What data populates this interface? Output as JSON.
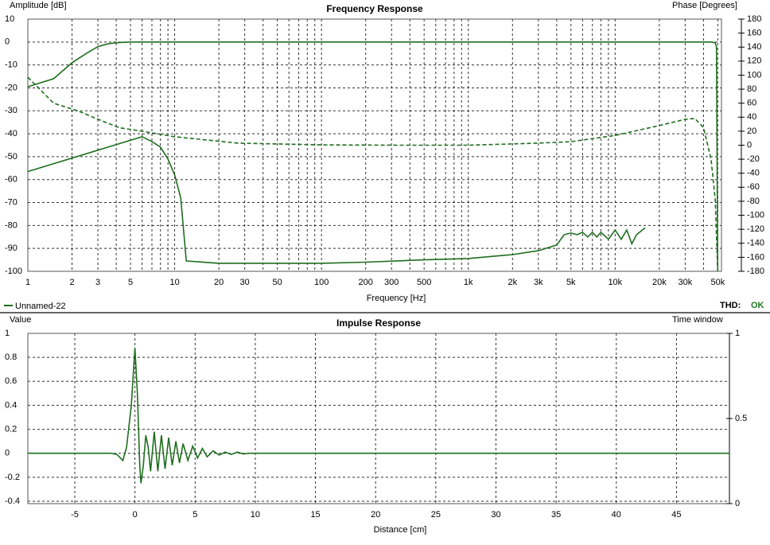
{
  "chart_data": [
    {
      "type": "line",
      "title": "Frequency Response",
      "x_label": "Frequency [Hz]",
      "y_label": "Amplitude [dB]",
      "y2_label": "Phase [Degrees]",
      "xlog": true,
      "grid": true,
      "xlim": [
        1,
        53000
      ],
      "ylim": [
        -100,
        10
      ],
      "y2lim": [
        -180,
        180
      ],
      "xticks": [
        1,
        2,
        3,
        5,
        10,
        20,
        30,
        50,
        100,
        200,
        300,
        500,
        {
          "value": 1000,
          "label": "1k"
        },
        {
          "value": 2000,
          "label": "2k"
        },
        {
          "value": 3000,
          "label": "3k"
        },
        {
          "value": 5000,
          "label": "5k"
        },
        {
          "value": 10000,
          "label": "10k"
        },
        {
          "value": 20000,
          "label": "20k"
        },
        {
          "value": 30000,
          "label": "30k"
        },
        {
          "value": 50000,
          "label": "50k"
        }
      ],
      "minor_xticks": [
        4,
        6,
        7,
        8,
        9,
        40,
        60,
        70,
        80,
        90,
        400,
        600,
        700,
        800,
        900,
        4000,
        6000,
        7000,
        8000,
        9000,
        40000
      ],
      "yticks": [
        10,
        0,
        -10,
        -20,
        -30,
        -40,
        -50,
        -60,
        -70,
        -80,
        -90,
        -100
      ],
      "y2ticks": [
        180,
        160,
        140,
        120,
        100,
        80,
        60,
        40,
        20,
        0,
        -20,
        -40,
        -60,
        -80,
        -100,
        -120,
        -140,
        -160,
        -180
      ],
      "legend": "bottom-left",
      "thd_label": "THD:",
      "thd_status": "OK",
      "thd_color": "#1e7a1e",
      "series": [
        {
          "name": "Unnamed-22",
          "color": "#1e6e1e",
          "x": [
            1,
            1.5,
            2,
            2.5,
            3,
            3.5,
            4,
            5,
            10,
            100,
            1000,
            10000,
            45000,
            48000,
            49000,
            50000
          ],
          "values": [
            -19.5,
            -16,
            -9,
            -5,
            -2,
            -0.8,
            -0.3,
            0,
            0,
            0,
            0,
            0,
            0,
            -0.3,
            -2,
            -100
          ]
        },
        {
          "color": "#1e6e1e",
          "dashed": true,
          "axis": "y2",
          "x": [
            1,
            1.5,
            2.25,
            3,
            4.2,
            6,
            10,
            27,
            100,
            330,
            1000,
            3000,
            5000,
            10000,
            20000,
            30000,
            35000,
            40000,
            45000,
            48000,
            50000
          ],
          "values": [
            97,
            60,
            48,
            37,
            25,
            20,
            12,
            3,
            0.5,
            0,
            0,
            3,
            5,
            14,
            28,
            37,
            38,
            25,
            -20,
            -77,
            -180
          ]
        },
        {
          "color": "#1e6e1e",
          "x": [
            1,
            6,
            7,
            8,
            9,
            10,
            11,
            12,
            20,
            100,
            200,
            500,
            1000,
            2000,
            3000,
            4000,
            4500,
            5000,
            5500,
            6000,
            6500,
            7000,
            7500,
            8000,
            9000,
            10000,
            11000,
            12000,
            13000,
            14000,
            16000
          ],
          "values": [
            -56.5,
            -41.3,
            -43.4,
            -45.8,
            -51,
            -58,
            -68,
            -95.5,
            -96.5,
            -96.5,
            -96,
            -95,
            -94.4,
            -92.7,
            -91,
            -88.5,
            -84,
            -83.3,
            -84,
            -83,
            -85,
            -83,
            -85,
            -83,
            -86,
            -82,
            -86,
            -82,
            -88,
            -84,
            -81
          ]
        }
      ]
    },
    {
      "type": "line",
      "title": "Impulse Response",
      "x_label": "Distance [cm]",
      "y_label": "Value",
      "y2_label": "Time window",
      "xlog": false,
      "grid": true,
      "xlim": [
        -8.9,
        49.4
      ],
      "ylim": [
        -0.42,
        1
      ],
      "y2lim": [
        0,
        1
      ],
      "xticks": [
        -5,
        0,
        5,
        10,
        15,
        20,
        25,
        30,
        35,
        40,
        45
      ],
      "yticks": [
        1,
        0.8,
        0.6,
        0.4,
        0.2,
        0,
        -0.2,
        -0.4
      ],
      "y2ticks": [
        1,
        0.5,
        0
      ],
      "series": [
        {
          "color": "#1e6e1e",
          "x": [
            -8.9,
            -2,
            -1.5,
            -1,
            -0.7,
            -0.3,
            0,
            0.2,
            0.4,
            0.5,
            0.7,
            0.9,
            1.1,
            1.3,
            1.6,
            1.9,
            2.2,
            2.5,
            2.8,
            3.1,
            3.4,
            3.7,
            4.0,
            4.4,
            4.8,
            5.2,
            5.6,
            6,
            6.5,
            7,
            7.5,
            8,
            8.5,
            9,
            9.5,
            49.4
          ],
          "values": [
            0,
            0,
            -0.01,
            -0.06,
            0.05,
            0.4,
            0.88,
            0.5,
            -0.1,
            -0.25,
            -0.1,
            0.15,
            0.05,
            -0.15,
            0.18,
            -0.15,
            0.15,
            -0.13,
            0.13,
            -0.1,
            0.1,
            -0.08,
            0.08,
            -0.06,
            0.06,
            -0.04,
            0.04,
            -0.03,
            0.02,
            -0.015,
            0.01,
            -0.01,
            0.01,
            -0.005,
            0,
            0
          ]
        }
      ]
    }
  ]
}
